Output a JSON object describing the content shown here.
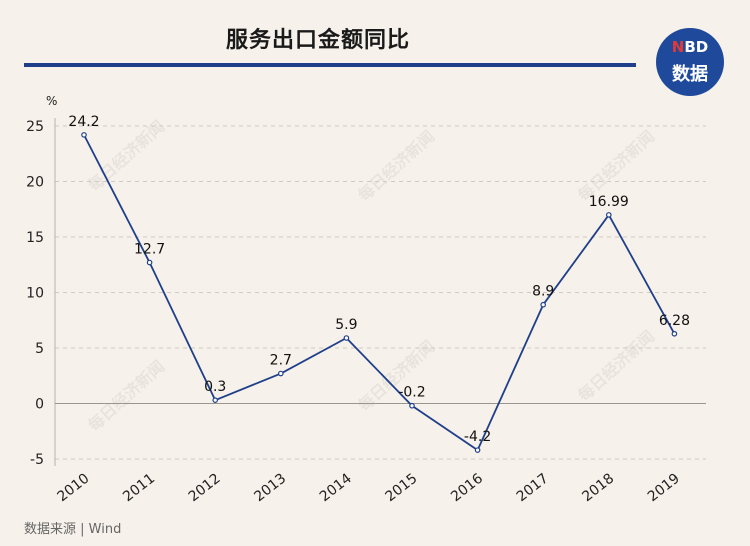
{
  "header": {
    "title": "服务出口金额同比"
  },
  "logo": {
    "top_left": "N",
    "top_right": "BD",
    "bottom": "数据"
  },
  "watermark": "每日经济新闻",
  "source": "数据来源 | Wind",
  "colors": {
    "line": "#1f3f8a",
    "background": "#f6f1ea",
    "accent_red": "#e53935"
  },
  "chart_data": {
    "type": "line",
    "title": "服务出口金额同比",
    "ylabel": "%",
    "xlabel": "",
    "categories": [
      "2010",
      "2011",
      "2012",
      "2013",
      "2014",
      "2015",
      "2016",
      "2017",
      "2018",
      "2019"
    ],
    "values": [
      24.2,
      12.7,
      0.3,
      2.7,
      5.9,
      -0.2,
      -4.2,
      8.9,
      16.99,
      6.28
    ],
    "data_labels": [
      "24.2",
      "12.7",
      "0.3",
      "2.7",
      "5.9",
      "-0.2",
      "-4.2",
      "8.9",
      "16.99",
      "6.28"
    ],
    "yticks": [
      -5,
      0,
      5,
      10,
      15,
      20,
      25
    ],
    "ytick_labels": [
      "-5",
      "0",
      "5",
      "10",
      "15",
      "20",
      "25"
    ],
    "ylim": [
      -5,
      25
    ],
    "grid": true,
    "grid_style": "dashed-horizontal",
    "legend": "none"
  }
}
